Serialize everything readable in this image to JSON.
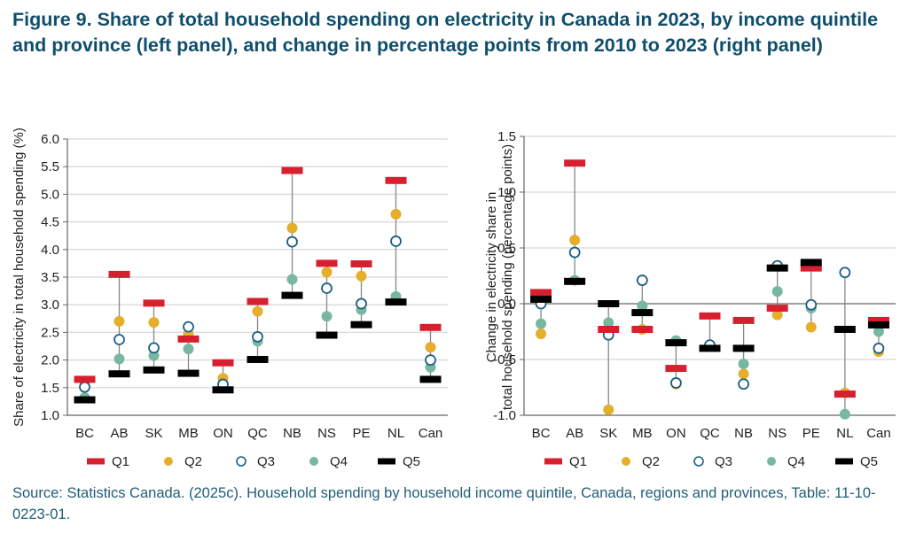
{
  "title": "Figure 9. Share of total household spending on electricity in Canada in 2023, by income quintile and province (left panel), and change in percentage points from 2010 to 2023 (right panel)",
  "source": "Source: Statistics Canada. (2025c). Household spending by household income quintile, Canada, regions and provinces, Table: 11-10-0223-01.",
  "colors": {
    "Q1": "#d7202f",
    "Q2": "#e5ae2b",
    "Q3": "#1b5f86",
    "Q4": "#78b7a0",
    "Q5": "#000000",
    "stem": "#888888",
    "grid": "#dddddd",
    "axis": "#666666"
  },
  "chart_data": [
    {
      "type": "scatter",
      "panel": "left",
      "title": "",
      "xlabel": "",
      "ylabel": "Share of electricity in total household spending (%)",
      "ylim": [
        1.0,
        6.0
      ],
      "yticks": [
        "1.0",
        "1.5",
        "2.0",
        "2.5",
        "3.0",
        "3.5",
        "4.0",
        "4.5",
        "5.0",
        "5.5",
        "6.0"
      ],
      "ytick_values": [
        1.0,
        1.5,
        2.0,
        2.5,
        3.0,
        3.5,
        4.0,
        4.5,
        5.0,
        5.5,
        6.0
      ],
      "grid": true,
      "legend": "bottom",
      "categories": [
        "BC",
        "AB",
        "SK",
        "MB",
        "ON",
        "QC",
        "NB",
        "NS",
        "PE",
        "NL",
        "Can"
      ],
      "series": [
        {
          "name": "Q1",
          "marker": "bar",
          "values": [
            1.65,
            3.55,
            3.03,
            2.38,
            1.95,
            3.06,
            5.43,
            3.75,
            3.74,
            5.25,
            2.59
          ]
        },
        {
          "name": "Q2",
          "marker": "dot",
          "values": [
            1.6,
            2.7,
            2.68,
            2.47,
            1.67,
            2.88,
            4.39,
            3.59,
            3.52,
            4.64,
            2.23
          ]
        },
        {
          "name": "Q3",
          "marker": "ring",
          "values": [
            1.51,
            2.37,
            2.22,
            2.6,
            1.56,
            2.42,
            4.14,
            3.3,
            3.02,
            4.15,
            2.0
          ]
        },
        {
          "name": "Q4",
          "marker": "dot",
          "values": [
            1.32,
            2.02,
            2.08,
            2.2,
            1.55,
            2.34,
            3.46,
            2.79,
            2.91,
            3.15,
            1.87
          ]
        },
        {
          "name": "Q5",
          "marker": "bar",
          "values": [
            1.28,
            1.75,
            1.82,
            1.76,
            1.46,
            2.01,
            3.17,
            2.45,
            2.64,
            3.05,
            1.65
          ]
        }
      ]
    },
    {
      "type": "scatter",
      "panel": "right",
      "title": "",
      "xlabel": "",
      "ylabel": "Change in electricity share in total household spending (percentage points)",
      "ylim": [
        -1.0,
        1.5
      ],
      "yticks": [
        "-1.0",
        "-0.5",
        "0.0",
        "0.5",
        "1.0",
        "1.5"
      ],
      "ytick_values": [
        -1.0,
        -0.5,
        0.0,
        0.5,
        1.0,
        1.5
      ],
      "grid": true,
      "legend": "bottom",
      "categories": [
        "BC",
        "AB",
        "SK",
        "MB",
        "ON",
        "QC",
        "NB",
        "NS",
        "PE",
        "NL",
        "Can"
      ],
      "series": [
        {
          "name": "Q1",
          "marker": "bar",
          "values": [
            0.1,
            1.26,
            -0.23,
            -0.23,
            -0.58,
            -0.11,
            -0.15,
            -0.04,
            0.32,
            -0.81,
            -0.15
          ]
        },
        {
          "name": "Q2",
          "marker": "dot",
          "values": [
            -0.27,
            0.57,
            -0.95,
            -0.23,
            -0.72,
            -0.38,
            -0.63,
            -0.1,
            -0.21,
            -0.8,
            -0.43
          ]
        },
        {
          "name": "Q3",
          "marker": "ring",
          "values": [
            0.0,
            0.46,
            -0.28,
            0.21,
            -0.71,
            -0.37,
            -0.72,
            0.34,
            -0.01,
            0.28,
            -0.4
          ]
        },
        {
          "name": "Q4",
          "marker": "dot",
          "values": [
            -0.18,
            0.21,
            -0.17,
            -0.02,
            -0.33,
            -0.38,
            -0.54,
            0.11,
            -0.04,
            -0.99,
            -0.25
          ]
        },
        {
          "name": "Q5",
          "marker": "bar",
          "values": [
            0.04,
            0.2,
            0.0,
            -0.08,
            -0.35,
            -0.4,
            -0.4,
            0.32,
            0.37,
            -0.23,
            -0.19
          ]
        }
      ]
    }
  ]
}
